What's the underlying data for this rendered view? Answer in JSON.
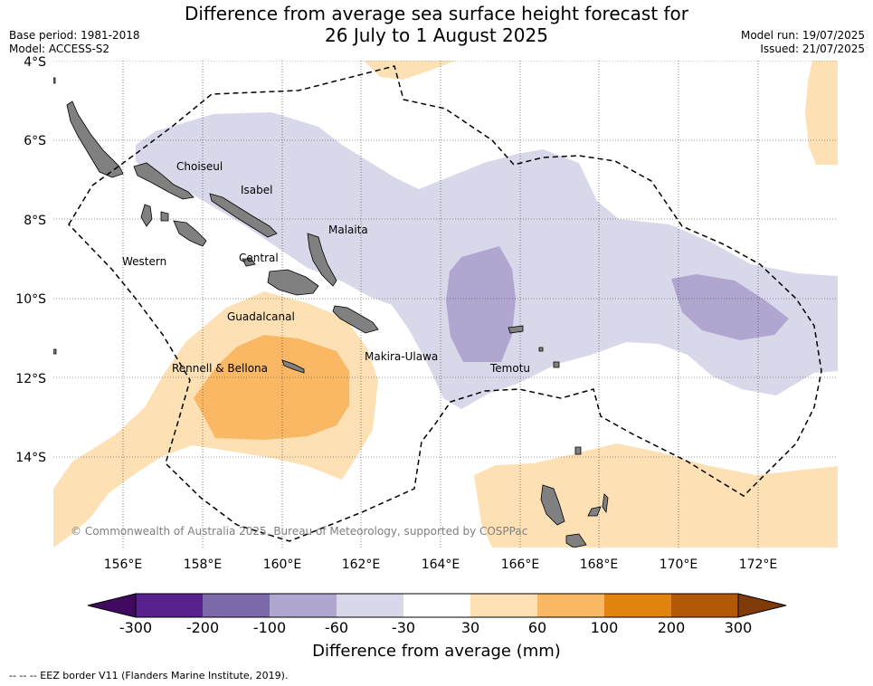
{
  "title": {
    "line1": "Difference from average sea surface height forecast for",
    "line2": "26 July to 1 August 2025"
  },
  "meta": {
    "base_period": "Base period: 1981-2018",
    "model": "Model: ACCESS-S2",
    "model_run": "Model run: 19/07/2025",
    "issued": "Issued: 21/07/2025"
  },
  "map": {
    "lon_range": [
      154,
      174
    ],
    "lat_range": [
      -16.2,
      -4.0
    ],
    "gridlines": "dotted",
    "lat_labels": [
      "4°S",
      "6°S",
      "8°S",
      "10°S",
      "12°S",
      "14°S"
    ],
    "lon_labels": [
      "156°E",
      "158°E",
      "160°E",
      "162°E",
      "164°E",
      "166°E",
      "168°E",
      "170°E",
      "172°E"
    ],
    "land_color": "#808080",
    "places": [
      "Choiseul",
      "Isabel",
      "Malaita",
      "Western",
      "Central",
      "Guadalcanal",
      "Makira-Ulawa",
      "Rennell & Bellona",
      "Temotu"
    ],
    "copyright": "© Commonwealth of Australia 2025, Bureau of Meteorology, supported by COSPPac"
  },
  "colorbar": {
    "label": "Difference from average (mm)",
    "ticks": [
      "-300",
      "-200",
      "-100",
      "-60",
      "-30",
      "30",
      "60",
      "100",
      "200",
      "300"
    ],
    "colors": [
      "#3f0a60",
      "#57228e",
      "#7d6aab",
      "#b0a6d0",
      "#d8d8ea",
      "#ffffff",
      "#fde0b4",
      "#fab864",
      "#e2830f",
      "#b35806",
      "#7f3b08"
    ]
  },
  "legend_note": "--  --  -- EEZ border V11 (Flanders Marine Institute, 2019)."
}
